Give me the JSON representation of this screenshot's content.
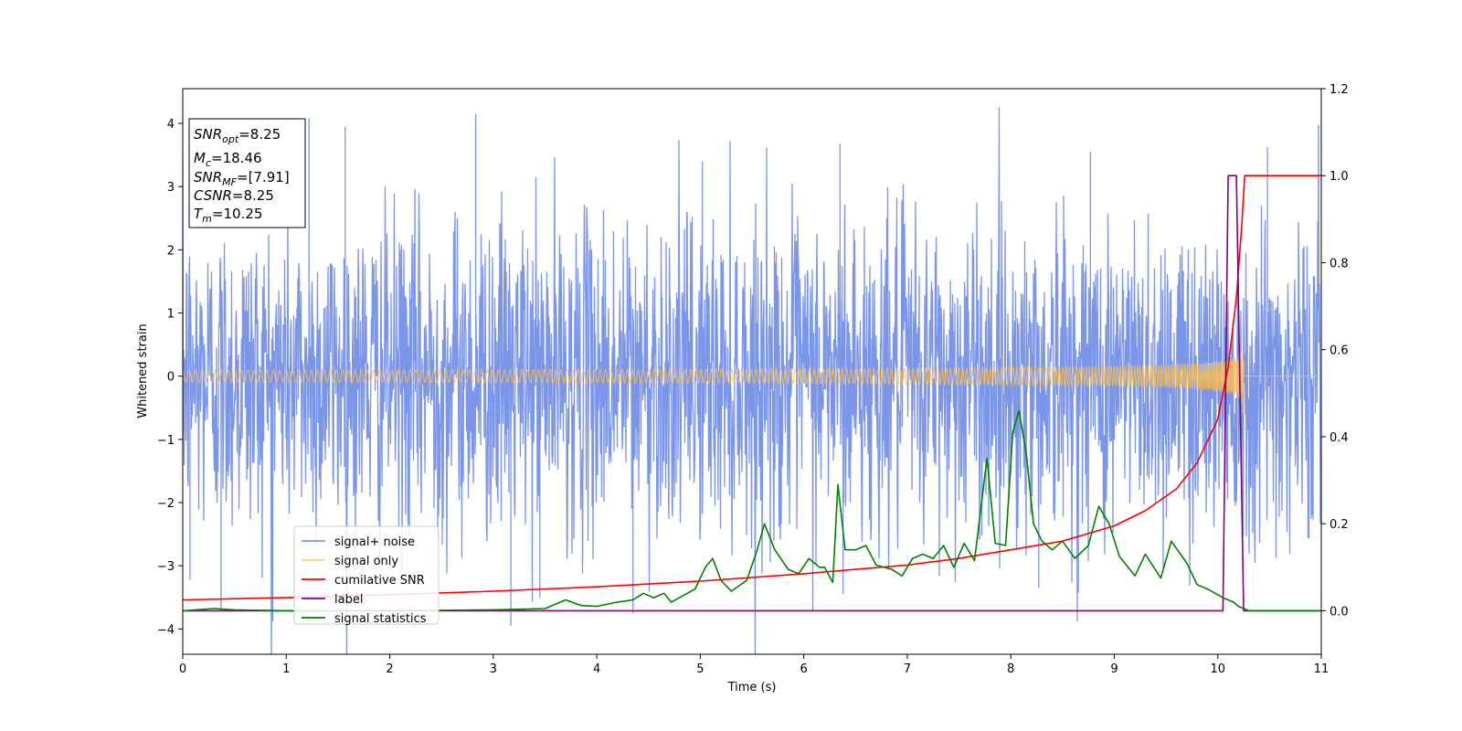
{
  "chart_data": {
    "type": "line",
    "xlabel": "Time (s)",
    "ylabel": "Whitened strain",
    "xlim": [
      0,
      11
    ],
    "ylim_left": [
      -4.4,
      4.55
    ],
    "ylim_right": [
      -0.1,
      1.2
    ],
    "x_ticks": [
      "0",
      "1",
      "2",
      "3",
      "4",
      "5",
      "6",
      "7",
      "8",
      "9",
      "10",
      "11"
    ],
    "y_left_ticks": [
      "−4",
      "−3",
      "−2",
      "−1",
      "0",
      "1",
      "2",
      "3",
      "4"
    ],
    "y_right_ticks": [
      "0.0",
      "0.2",
      "0.4",
      "0.6",
      "0.8",
      "1.0",
      "1.2"
    ],
    "info_box": {
      "snr_opt": {
        "sym": "SNR",
        "sub": "opt",
        "val": "=8.25"
      },
      "mc": {
        "sym": "M",
        "sub": "c",
        "val": "=18.46"
      },
      "snr_mf": {
        "sym": "SNR",
        "sub": "MF",
        "val": "=[7.91]"
      },
      "csnr": {
        "sym": "CSNR",
        "sub": "",
        "val": "=8.25"
      },
      "tm": {
        "sym": "T",
        "sub": "m",
        "val": "=10.25"
      }
    },
    "legend": {
      "placement": "lower-left",
      "entries": [
        {
          "label": "signal+ noise",
          "color": "#7b96e8"
        },
        {
          "label": "signal only",
          "color": "#ffd27a"
        },
        {
          "label": "cumilative SNR",
          "color": "#ff0000"
        },
        {
          "label": "label",
          "color": "#800080"
        },
        {
          "label": "signal statistics",
          "color": "#008000"
        }
      ]
    },
    "series": [
      {
        "name": "signal+ noise",
        "axis": "left",
        "kind": "noise",
        "color": "#7b96e8",
        "envelope": [
          -2.6,
          2.6
        ],
        "peaks": [
          [
            0.87,
            -3.88
          ],
          [
            1.22,
            4.08
          ],
          [
            2.83,
            4.15
          ],
          [
            3.17,
            -3.95
          ],
          [
            1.57,
            3.95
          ],
          [
            4.35,
            -3.75
          ],
          [
            6.35,
            3.68
          ],
          [
            6.38,
            -3.45
          ],
          [
            8.27,
            -3.35
          ],
          [
            10.48,
            3.62
          ],
          [
            0.37,
            -3.72
          ],
          [
            0.07,
            -3.22
          ],
          [
            3.45,
            -3.5
          ],
          [
            5.02,
            3.4
          ],
          [
            8.77,
            3.55
          ]
        ]
      },
      {
        "name": "signal only",
        "axis": "left",
        "kind": "chirp",
        "color": "#ffc04d",
        "merger_time": 10.25,
        "peak_amplitude": 0.9
      },
      {
        "name": "cumilative SNR",
        "axis": "right",
        "color": "#ff0000",
        "points": [
          [
            0,
            0.025
          ],
          [
            1,
            0.03
          ],
          [
            2,
            0.037
          ],
          [
            3,
            0.045
          ],
          [
            4,
            0.055
          ],
          [
            5,
            0.068
          ],
          [
            6,
            0.085
          ],
          [
            7,
            0.105
          ],
          [
            7.5,
            0.12
          ],
          [
            8,
            0.14
          ],
          [
            8.5,
            0.16
          ],
          [
            9,
            0.195
          ],
          [
            9.3,
            0.23
          ],
          [
            9.6,
            0.28
          ],
          [
            9.8,
            0.34
          ],
          [
            10.0,
            0.44
          ],
          [
            10.1,
            0.56
          ],
          [
            10.18,
            0.72
          ],
          [
            10.23,
            0.88
          ],
          [
            10.26,
            1.0
          ],
          [
            11,
            1.0
          ]
        ]
      },
      {
        "name": "label",
        "axis": "right",
        "color": "#800080",
        "points": [
          [
            0,
            0.0
          ],
          [
            10.05,
            0.0
          ],
          [
            10.1,
            1.0
          ],
          [
            10.18,
            1.0
          ],
          [
            10.25,
            0.0
          ],
          [
            11,
            0.0
          ]
        ]
      },
      {
        "name": "signal statistics",
        "axis": "right",
        "color": "#008000",
        "points": [
          [
            0,
            0.0
          ],
          [
            0.3,
            0.005
          ],
          [
            0.5,
            0.002
          ],
          [
            1.0,
            0.0
          ],
          [
            2.0,
            0.0
          ],
          [
            3.0,
            0.002
          ],
          [
            3.5,
            0.005
          ],
          [
            3.7,
            0.025
          ],
          [
            3.85,
            0.012
          ],
          [
            4.0,
            0.01
          ],
          [
            4.2,
            0.02
          ],
          [
            4.35,
            0.025
          ],
          [
            4.45,
            0.04
          ],
          [
            4.55,
            0.03
          ],
          [
            4.65,
            0.04
          ],
          [
            4.72,
            0.02
          ],
          [
            4.8,
            0.03
          ],
          [
            4.95,
            0.05
          ],
          [
            5.05,
            0.1
          ],
          [
            5.12,
            0.12
          ],
          [
            5.2,
            0.07
          ],
          [
            5.3,
            0.045
          ],
          [
            5.45,
            0.07
          ],
          [
            5.55,
            0.14
          ],
          [
            5.62,
            0.2
          ],
          [
            5.72,
            0.14
          ],
          [
            5.85,
            0.095
          ],
          [
            5.95,
            0.085
          ],
          [
            6.05,
            0.12
          ],
          [
            6.15,
            0.1
          ],
          [
            6.2,
            0.1
          ],
          [
            6.28,
            0.065
          ],
          [
            6.33,
            0.29
          ],
          [
            6.4,
            0.14
          ],
          [
            6.5,
            0.14
          ],
          [
            6.6,
            0.15
          ],
          [
            6.7,
            0.105
          ],
          [
            6.85,
            0.095
          ],
          [
            6.95,
            0.08
          ],
          [
            7.05,
            0.12
          ],
          [
            7.15,
            0.13
          ],
          [
            7.25,
            0.12
          ],
          [
            7.35,
            0.15
          ],
          [
            7.45,
            0.1
          ],
          [
            7.55,
            0.155
          ],
          [
            7.65,
            0.115
          ],
          [
            7.77,
            0.35
          ],
          [
            7.85,
            0.155
          ],
          [
            7.95,
            0.15
          ],
          [
            8.02,
            0.41
          ],
          [
            8.08,
            0.46
          ],
          [
            8.15,
            0.36
          ],
          [
            8.22,
            0.2
          ],
          [
            8.3,
            0.16
          ],
          [
            8.4,
            0.14
          ],
          [
            8.5,
            0.16
          ],
          [
            8.62,
            0.12
          ],
          [
            8.75,
            0.15
          ],
          [
            8.85,
            0.24
          ],
          [
            8.95,
            0.2
          ],
          [
            9.05,
            0.125
          ],
          [
            9.2,
            0.08
          ],
          [
            9.3,
            0.13
          ],
          [
            9.45,
            0.075
          ],
          [
            9.55,
            0.16
          ],
          [
            9.7,
            0.11
          ],
          [
            9.8,
            0.06
          ],
          [
            9.9,
            0.05
          ],
          [
            10.05,
            0.03
          ],
          [
            10.15,
            0.02
          ],
          [
            10.2,
            0.01
          ],
          [
            10.3,
            0.0
          ],
          [
            11,
            0.0
          ]
        ]
      }
    ]
  }
}
